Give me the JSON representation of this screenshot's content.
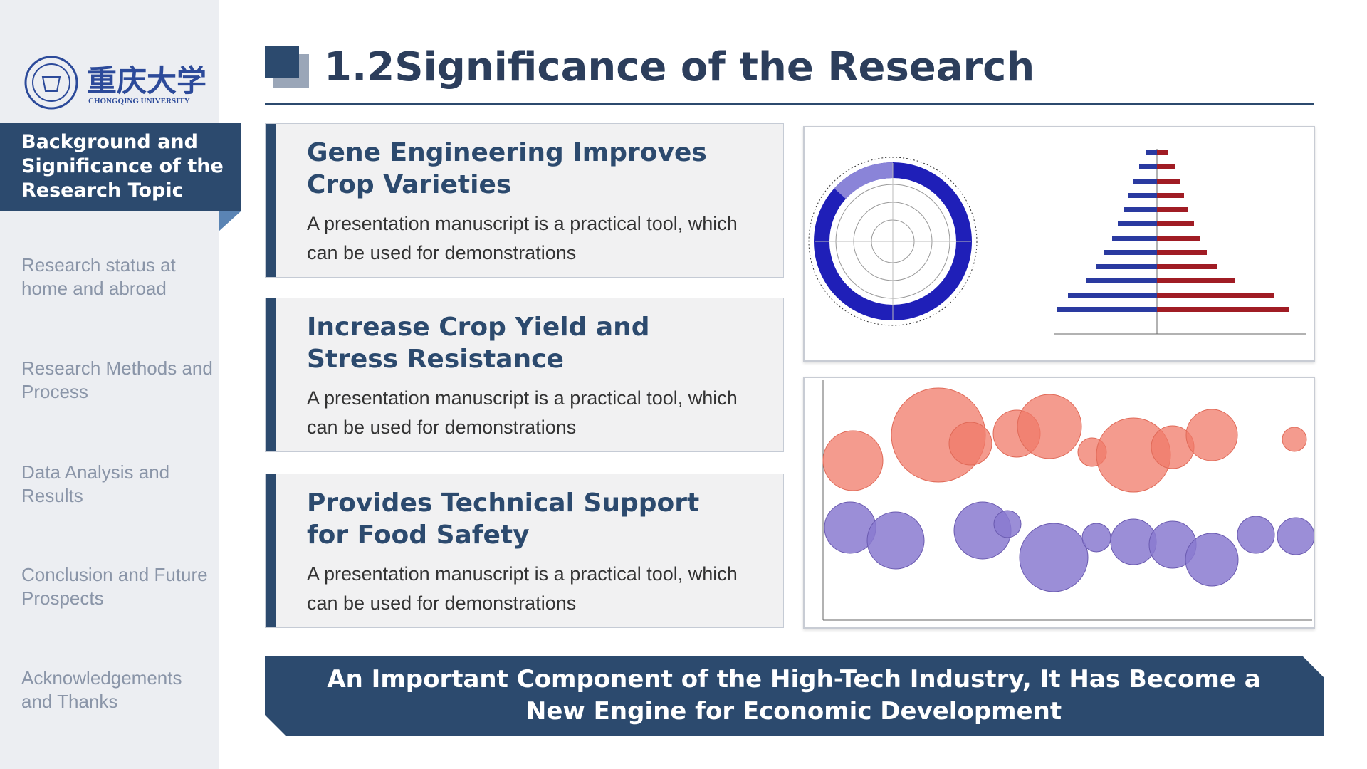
{
  "logo": {
    "name_cn": "重庆大学",
    "name_en": "CHONGQING UNIVERSITY"
  },
  "sidebar": {
    "items": [
      "Background and Significance of the Research Topic",
      "Research status at home and abroad",
      "Research Methods and Process",
      "Data Analysis and Results",
      "Conclusion and Future Prospects",
      "Acknowledgements and Thanks"
    ]
  },
  "header": {
    "title": "1.2Significance of the Research"
  },
  "cards": [
    {
      "title": "Gene Engineering Improves Crop Varieties",
      "body": "A presentation manuscript is a practical tool, which can be used for demonstrations"
    },
    {
      "title": "Increase Crop Yield and Stress Resistance",
      "body": "A presentation manuscript is a practical tool, which can be used for demonstrations"
    },
    {
      "title": "Provides Technical Support for Food Safety",
      "body": "A presentation manuscript is a practical tool, which can be used for demonstrations"
    }
  ],
  "banner": {
    "text": "An Important Component of the High-Tech Industry, It Has Become a New Engine for Economic Development"
  }
}
